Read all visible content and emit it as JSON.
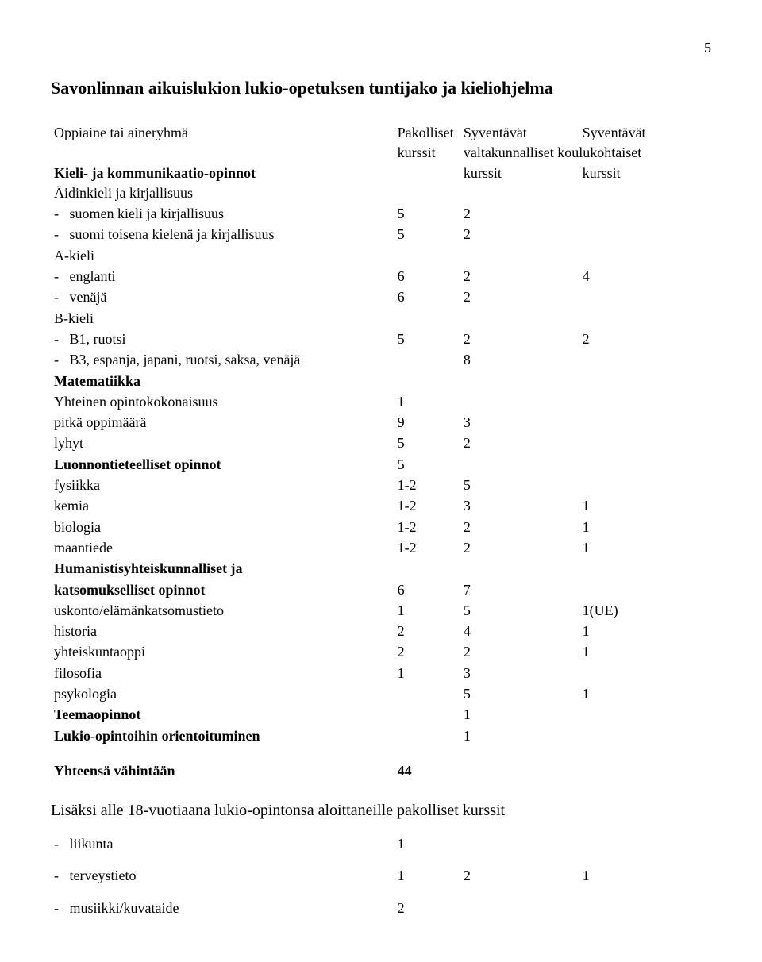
{
  "page_number": "5",
  "title": "Savonlinnan aikuislukion lukio-opetuksen tuntijako ja kieliohjelma",
  "header": {
    "col0": "Oppiaine tai aineryhmä",
    "col1": "Pakolliset",
    "col1b": "kurssit",
    "col2": "Syventävät",
    "col3": "Syventävät",
    "col23b": "valtakunnalliset koulukohtaiset",
    "col23c_left": "kurssit",
    "col23c_right": "kurssit"
  },
  "rows": {
    "r1": {
      "label": "Kieli- ja kommunikaatio-opinnot",
      "bold": true
    },
    "r2": {
      "label": "Äidinkieli ja kirjallisuus"
    },
    "r3": {
      "label": "suomen kieli ja kirjallisuus",
      "indent": true,
      "dash": true,
      "v1": "5",
      "v2": "2"
    },
    "r4": {
      "label": "suomi toisena kielenä ja kirjallisuus",
      "indent": true,
      "dash": true,
      "v1": "5",
      "v2": "2"
    },
    "r5": {
      "label": "A-kieli"
    },
    "r6": {
      "label": "englanti",
      "indent": true,
      "dash": true,
      "v1": "6",
      "v2": "2",
      "v3": "4"
    },
    "r7": {
      "label": "venäjä",
      "indent": true,
      "dash": true,
      "v1": "6",
      "v2": "2"
    },
    "r8": {
      "label": "B-kieli"
    },
    "r9": {
      "label": "B1, ruotsi",
      "indent": true,
      "dash": true,
      "v1": "5",
      "v2": "2",
      "v3": "2"
    },
    "r10": {
      "label": "B3, espanja, japani, ruotsi, saksa, venäjä",
      "indent": true,
      "dash": true,
      "v2": "8"
    },
    "r11": {
      "label": "Matematiikka",
      "bold": true
    },
    "r12": {
      "label": "Yhteinen opintokokonaisuus",
      "v1": "1"
    },
    "r13": {
      "label": "pitkä oppimäärä",
      "v1": "9",
      "v2": "3"
    },
    "r14": {
      "label": "lyhyt",
      "v1": "5",
      "v2": "2"
    },
    "r15": {
      "label": "Luonnontieteelliset opinnot",
      "bold": true,
      "v1": "5"
    },
    "r16": {
      "label": "fysiikka",
      "v1": "1-2",
      "v2": "5"
    },
    "r17": {
      "label": "kemia",
      "v1": "1-2",
      "v2": "3",
      "v3": "1"
    },
    "r18": {
      "label": "biologia",
      "v1": "1-2",
      "v2": "2",
      "v3": "1"
    },
    "r19": {
      "label": "maantiede",
      "v1": "1-2",
      "v2": "2",
      "v3": "1"
    },
    "r20": {
      "label": "Humanistisyhteiskunnalliset ja",
      "bold": true
    },
    "r21": {
      "label": "katsomukselliset opinnot",
      "bold": true,
      "v1": "6",
      "v2": "7"
    },
    "r22": {
      "label": "uskonto/elämänkatsomustieto",
      "v1": "1",
      "v2": "5",
      "v3": "1(UE)"
    },
    "r23": {
      "label": "historia",
      "v1": "2",
      "v2": "4",
      "v3": "1"
    },
    "r24": {
      "label": "yhteiskuntaoppi",
      "v1": "2",
      "v2": "2",
      "v3": "1"
    },
    "r25": {
      "label": "filosofia",
      "v1": "1",
      "v2": "3"
    },
    "r26": {
      "label": "psykologia",
      "v2": "5",
      "v3": "1"
    },
    "r27": {
      "label": "Teemaopinnot",
      "bold": true,
      "v2": "1"
    },
    "r28": {
      "label": "Lukio-opintoihin orientoituminen",
      "bold": true,
      "v2": "1"
    }
  },
  "total": {
    "label": "Yhteensä vähintään",
    "v1": "44"
  },
  "footer_intro": "Lisäksi alle 18-vuotiaana lukio-opintonsa aloittaneille pakolliset kurssit",
  "footer_rows": {
    "f1": {
      "label": "liikunta",
      "v1": "1"
    },
    "f2": {
      "label": "terveystieto",
      "v1": "1",
      "v2": "2",
      "v3": "1"
    },
    "f3": {
      "label": "musiikki/kuvataide",
      "v1": "2"
    }
  }
}
